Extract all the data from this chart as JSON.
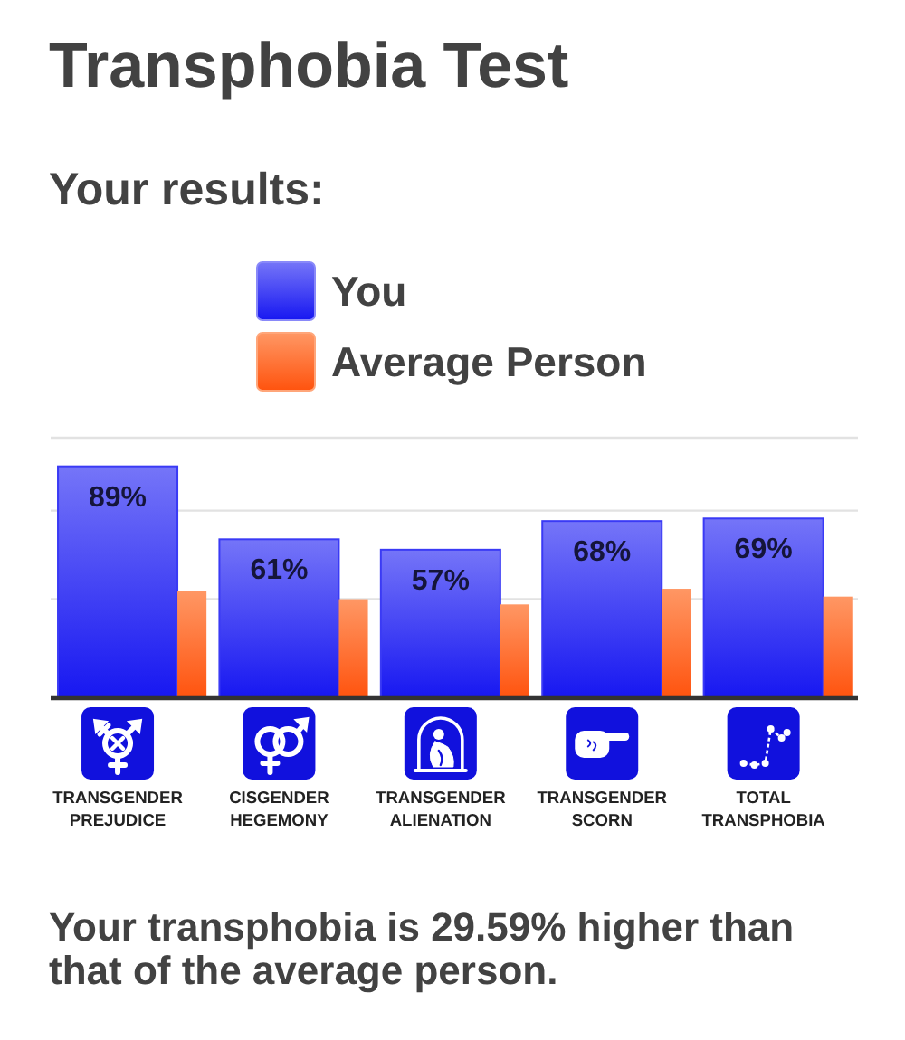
{
  "chart_data": {
    "type": "bar",
    "title": "Transphobia Test",
    "subtitle": "Your results:",
    "categories": [
      "TRANSGENDER PREJUDICE",
      "CISGENDER HEGEMONY",
      "TRANSGENDER ALIENATION",
      "TRANSGENDER SCORN",
      "TOTAL TRANSPHOBIA"
    ],
    "series": [
      {
        "name": "You",
        "color": "#3a3af5",
        "values": [
          89,
          61,
          57,
          68,
          69
        ],
        "value_labels": [
          "89%",
          "61%",
          "57%",
          "68%",
          "69%"
        ]
      },
      {
        "name": "Average Person",
        "color": "#ff6a22",
        "values": [
          41,
          38,
          36,
          42,
          39
        ]
      }
    ],
    "ylim": [
      0,
      100
    ],
    "yticks": [
      {
        "value": 38,
        "label": null
      },
      {
        "value": 72,
        "label": null
      },
      {
        "value": 100,
        "label": null
      }
    ],
    "grid": "y",
    "tick_labels": "x",
    "legend": "top",
    "annotations": [
      "Your transphobia is 29.59% higher than that of the average person."
    ]
  }
}
